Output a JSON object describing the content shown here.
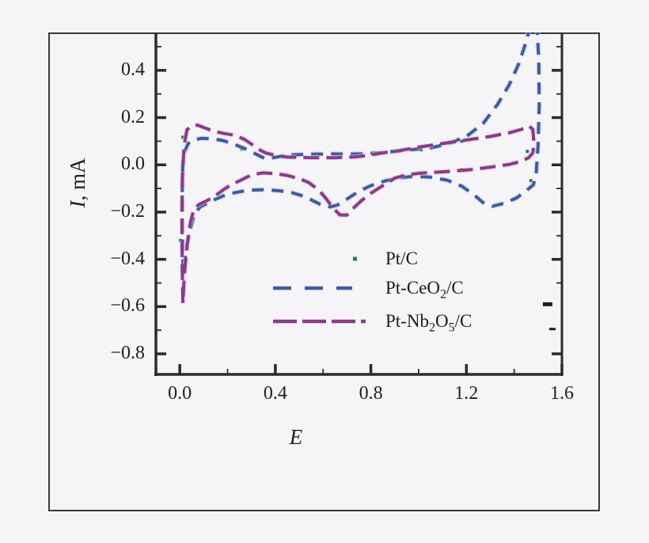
{
  "figure": {
    "background": "#f5f4f6",
    "frame_color": "#3a3a3a",
    "axis_color": "#2b2b2b",
    "text_color": "#1f1f1f"
  },
  "chart_data": {
    "type": "line",
    "title": "",
    "xlabel": "E",
    "ylabel_italic": "I",
    "ylabel_rest": ", mA",
    "xlim": [
      -0.1,
      1.6
    ],
    "ylim": [
      -0.887,
      0.557
    ],
    "grid": false,
    "legend_position": "inside lower center-right",
    "x_major_ticks": [
      0.0,
      0.4,
      0.8,
      1.2,
      1.6
    ],
    "x_tick_labels": [
      "0.0",
      "0.4",
      "0.8",
      "1.2",
      "1.6"
    ],
    "x_minor_ticks": [
      0.2,
      0.6,
      1.0,
      1.4
    ],
    "y_major_ticks": [
      0.4,
      0.2,
      0.0,
      -0.2,
      -0.4,
      -0.6,
      -0.8
    ],
    "y_tick_labels": [
      "0.4",
      "0.2",
      "0.0",
      "−0.2",
      "−0.4",
      "−0.6",
      "−0.8"
    ],
    "y_minor_ticks": [
      0.5,
      0.3,
      0.1,
      -0.1,
      -0.3,
      -0.5,
      -0.7
    ],
    "right_axis_major_ticks": [
      0.4,
      0.2,
      0.0,
      -0.2,
      -0.4,
      -0.8
    ],
    "right_axis_minor_ticks": [
      0.5,
      0.3,
      0.1,
      -0.1,
      -0.3,
      -0.5
    ],
    "stray_marks": [
      {
        "x": 1.54,
        "y": -0.59,
        "len": 12,
        "w": 5
      },
      {
        "x": 1.56,
        "y": -0.695,
        "len": 8,
        "w": 3
      }
    ],
    "series": [
      {
        "name": "Pt/C",
        "color": "#277c4e",
        "style": "sparse-dots",
        "points": [
          [
            0.013,
            0.117
          ],
          [
            0.26,
            0.067
          ],
          [
            0.003,
            -0.32
          ],
          [
            1.01,
            0.063
          ],
          [
            1.18,
            0.1
          ],
          [
            1.18,
            -0.02
          ],
          [
            1.455,
            0.057
          ],
          [
            1.47,
            -0.067
          ]
        ]
      },
      {
        "name": "Pt-CeO2/C",
        "color": "#3c5ca7",
        "halo": "#c6cfe9",
        "style": "dashed",
        "dash": [
          15,
          10
        ],
        "points": [
          [
            0.014,
            -0.45
          ],
          [
            0.011,
            -0.3
          ],
          [
            0.01,
            -0.1
          ],
          [
            0.013,
            0.02
          ],
          [
            0.022,
            0.06
          ],
          [
            0.035,
            0.09
          ],
          [
            0.055,
            0.105
          ],
          [
            0.09,
            0.112
          ],
          [
            0.14,
            0.11
          ],
          [
            0.18,
            0.103
          ],
          [
            0.22,
            0.09
          ],
          [
            0.27,
            0.07
          ],
          [
            0.32,
            0.045
          ],
          [
            0.36,
            0.025
          ],
          [
            0.4,
            0.032
          ],
          [
            0.46,
            0.042
          ],
          [
            0.55,
            0.045
          ],
          [
            0.65,
            0.046
          ],
          [
            0.75,
            0.046
          ],
          [
            0.85,
            0.052
          ],
          [
            0.95,
            0.062
          ],
          [
            1.05,
            0.072
          ],
          [
            1.12,
            0.088
          ],
          [
            1.2,
            0.12
          ],
          [
            1.27,
            0.175
          ],
          [
            1.33,
            0.255
          ],
          [
            1.38,
            0.34
          ],
          [
            1.42,
            0.43
          ],
          [
            1.45,
            0.52
          ],
          [
            1.47,
            0.6
          ],
          [
            1.495,
            0.6
          ],
          [
            1.503,
            0.45
          ],
          [
            1.505,
            0.25
          ],
          [
            1.5,
            0.08
          ],
          [
            1.492,
            -0.04
          ],
          [
            1.48,
            -0.085
          ],
          [
            1.45,
            -0.11
          ],
          [
            1.41,
            -0.14
          ],
          [
            1.36,
            -0.162
          ],
          [
            1.31,
            -0.175
          ],
          [
            1.27,
            -0.16
          ],
          [
            1.23,
            -0.125
          ],
          [
            1.18,
            -0.09
          ],
          [
            1.12,
            -0.065
          ],
          [
            1.05,
            -0.052
          ],
          [
            0.98,
            -0.048
          ],
          [
            0.92,
            -0.055
          ],
          [
            0.86,
            -0.068
          ],
          [
            0.8,
            -0.088
          ],
          [
            0.75,
            -0.112
          ],
          [
            0.7,
            -0.145
          ],
          [
            0.66,
            -0.17
          ],
          [
            0.63,
            -0.178
          ],
          [
            0.59,
            -0.168
          ],
          [
            0.55,
            -0.148
          ],
          [
            0.51,
            -0.13
          ],
          [
            0.47,
            -0.118
          ],
          [
            0.42,
            -0.11
          ],
          [
            0.36,
            -0.105
          ],
          [
            0.3,
            -0.107
          ],
          [
            0.26,
            -0.112
          ],
          [
            0.22,
            -0.12
          ],
          [
            0.18,
            -0.132
          ],
          [
            0.14,
            -0.15
          ],
          [
            0.11,
            -0.165
          ],
          [
            0.085,
            -0.178
          ],
          [
            0.06,
            -0.21
          ],
          [
            0.045,
            -0.27
          ],
          [
            0.03,
            -0.34
          ],
          [
            0.02,
            -0.41
          ],
          [
            0.014,
            -0.45
          ]
        ]
      },
      {
        "name": "Pt-Nb2O5/C",
        "color": "#8c3b8a",
        "halo": "#e3c6e1",
        "style": "dashed",
        "dash": [
          20,
          9
        ],
        "points": [
          [
            0.013,
            -0.585
          ],
          [
            0.01,
            -0.42
          ],
          [
            0.009,
            -0.22
          ],
          [
            0.011,
            -0.05
          ],
          [
            0.018,
            0.08
          ],
          [
            0.03,
            0.148
          ],
          [
            0.05,
            0.166
          ],
          [
            0.075,
            0.168
          ],
          [
            0.105,
            0.156
          ],
          [
            0.14,
            0.143
          ],
          [
            0.18,
            0.134
          ],
          [
            0.23,
            0.125
          ],
          [
            0.27,
            0.108
          ],
          [
            0.3,
            0.088
          ],
          [
            0.33,
            0.066
          ],
          [
            0.36,
            0.05
          ],
          [
            0.4,
            0.04
          ],
          [
            0.45,
            0.033
          ],
          [
            0.55,
            0.03
          ],
          [
            0.65,
            0.03
          ],
          [
            0.74,
            0.034
          ],
          [
            0.8,
            0.042
          ],
          [
            0.86,
            0.052
          ],
          [
            0.92,
            0.06
          ],
          [
            1.0,
            0.075
          ],
          [
            1.1,
            0.09
          ],
          [
            1.2,
            0.105
          ],
          [
            1.3,
            0.12
          ],
          [
            1.38,
            0.136
          ],
          [
            1.43,
            0.15
          ],
          [
            1.462,
            0.165
          ],
          [
            1.478,
            0.15
          ],
          [
            1.483,
            0.09
          ],
          [
            1.478,
            0.05
          ],
          [
            1.46,
            0.03
          ],
          [
            1.43,
            0.015
          ],
          [
            1.38,
            0.002
          ],
          [
            1.3,
            -0.01
          ],
          [
            1.22,
            -0.02
          ],
          [
            1.14,
            -0.027
          ],
          [
            1.06,
            -0.032
          ],
          [
            1.0,
            -0.036
          ],
          [
            0.95,
            -0.042
          ],
          [
            0.9,
            -0.056
          ],
          [
            0.85,
            -0.088
          ],
          [
            0.8,
            -0.12
          ],
          [
            0.76,
            -0.152
          ],
          [
            0.72,
            -0.19
          ],
          [
            0.7,
            -0.213
          ],
          [
            0.67,
            -0.212
          ],
          [
            0.64,
            -0.18
          ],
          [
            0.61,
            -0.14
          ],
          [
            0.58,
            -0.105
          ],
          [
            0.54,
            -0.075
          ],
          [
            0.5,
            -0.058
          ],
          [
            0.45,
            -0.045
          ],
          [
            0.4,
            -0.037
          ],
          [
            0.35,
            -0.034
          ],
          [
            0.31,
            -0.04
          ],
          [
            0.28,
            -0.052
          ],
          [
            0.25,
            -0.068
          ],
          [
            0.22,
            -0.082
          ],
          [
            0.19,
            -0.1
          ],
          [
            0.16,
            -0.122
          ],
          [
            0.13,
            -0.143
          ],
          [
            0.1,
            -0.158
          ],
          [
            0.08,
            -0.168
          ],
          [
            0.06,
            -0.185
          ],
          [
            0.045,
            -0.24
          ],
          [
            0.032,
            -0.33
          ],
          [
            0.022,
            -0.43
          ],
          [
            0.016,
            -0.52
          ],
          [
            0.013,
            -0.585
          ]
        ]
      }
    ]
  },
  "legend": {
    "items": [
      {
        "marker": "dot",
        "color": "#277c4e",
        "label_segments": [
          {
            "t": "Pt/C"
          }
        ]
      },
      {
        "marker": "dash-line",
        "color": "#3c5ca7",
        "marker_dash": "23 17",
        "marker_width": 100,
        "label_segments": [
          {
            "t": "Pt-CeO"
          },
          {
            "t": "2",
            "sub": true
          },
          {
            "t": "/C"
          }
        ]
      },
      {
        "marker": "dash-line",
        "color": "#8c3b8a",
        "marker_dash": "30 7",
        "marker_width": 117,
        "label_segments": [
          {
            "t": "Pt-Nb"
          },
          {
            "t": "2",
            "sub": true
          },
          {
            "t": "O"
          },
          {
            "t": "5",
            "sub": true
          },
          {
            "t": "/C"
          }
        ]
      }
    ]
  }
}
